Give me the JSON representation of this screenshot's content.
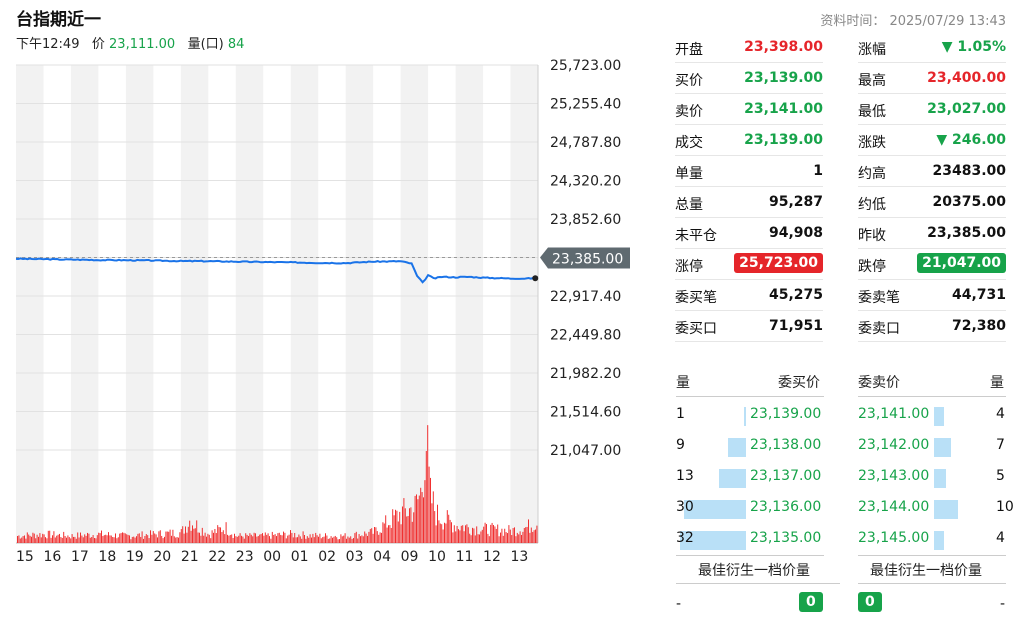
{
  "header": {
    "title": "台指期近一",
    "time_label": "下午12:49",
    "price_label": "价",
    "price": "23,111.00",
    "vol_label": "量(口)",
    "vol": "84",
    "data_time": "资料时间：  2025/07/29 13:43"
  },
  "colors": {
    "up": "#e5252a",
    "down": "#17a34a",
    "line": "#1a73e8",
    "volume": "#f03030",
    "bar": "#b9e0f7"
  },
  "quote_left": [
    {
      "label": "开盘",
      "value": "23,398.00",
      "color": "red"
    },
    {
      "label": "买价",
      "value": "23,139.00",
      "color": "grn"
    },
    {
      "label": "卖价",
      "value": "23,141.00",
      "color": "grn"
    },
    {
      "label": "成交",
      "value": "23,139.00",
      "color": "grn"
    },
    {
      "label": "单量",
      "value": "1",
      "color": "blk"
    },
    {
      "label": "总量",
      "value": "95,287",
      "color": "blk"
    },
    {
      "label": "未平仓",
      "value": "94,908",
      "color": "blk"
    },
    {
      "label": "涨停",
      "value": "25,723.00",
      "color": "badge-red"
    },
    {
      "label": "委买笔",
      "value": "45,275",
      "color": "blk"
    },
    {
      "label": "委买口",
      "value": "71,951",
      "color": "blk"
    }
  ],
  "quote_right": [
    {
      "label": "涨幅",
      "value": "▼ 1.05%",
      "color": "grn"
    },
    {
      "label": "最高",
      "value": "23,400.00",
      "color": "red"
    },
    {
      "label": "最低",
      "value": "23,027.00",
      "color": "grn"
    },
    {
      "label": "涨跌",
      "value": "▼ 246.00",
      "color": "grn"
    },
    {
      "label": "约高",
      "value": "23483.00",
      "color": "blk"
    },
    {
      "label": "约低",
      "value": "20375.00",
      "color": "blk"
    },
    {
      "label": "昨收",
      "value": "23,385.00",
      "color": "blk"
    },
    {
      "label": "跌停",
      "value": "21,047.00",
      "color": "badge-grn"
    },
    {
      "label": "委卖笔",
      "value": "44,731",
      "color": "blk"
    },
    {
      "label": "委卖口",
      "value": "72,380",
      "color": "blk"
    }
  ],
  "order_book": {
    "bid_headers": [
      "量",
      "委买价"
    ],
    "ask_headers": [
      "委卖价",
      "量"
    ],
    "bids": [
      {
        "qty": "1",
        "price": "23,139.00",
        "ratio": 0.03
      },
      {
        "qty": "9",
        "price": "23,138.00",
        "ratio": 0.28
      },
      {
        "qty": "13",
        "price": "23,137.00",
        "ratio": 0.41
      },
      {
        "qty": "30",
        "price": "23,136.00",
        "ratio": 0.94
      },
      {
        "qty": "32",
        "price": "23,135.00",
        "ratio": 1.0
      }
    ],
    "asks": [
      {
        "price": "23,141.00",
        "qty": "4",
        "ratio": 0.4
      },
      {
        "price": "23,142.00",
        "qty": "7",
        "ratio": 0.7
      },
      {
        "price": "23,143.00",
        "qty": "5",
        "ratio": 0.5
      },
      {
        "price": "23,144.00",
        "qty": "10",
        "ratio": 1.0
      },
      {
        "price": "23,145.00",
        "qty": "4",
        "ratio": 0.4
      }
    ],
    "best_label": "最佳衍生一档价量",
    "best_bid_price": "-",
    "best_bid_qty": "0",
    "best_ask_qty": "0",
    "best_ask_price": "-"
  },
  "chart_data": {
    "type": "line",
    "y_ticks": [
      "25,723.00",
      "25,255.40",
      "24,787.80",
      "24,320.20",
      "23,852.60",
      "23,385.00",
      "22,917.40",
      "22,449.80",
      "21,982.20",
      "21,514.60",
      "21,047.00"
    ],
    "ylim": [
      21047.0,
      25723.0
    ],
    "reference_price": 23385.0,
    "last_label": "23,385.00",
    "x_labels": [
      "15",
      "16",
      "17",
      "18",
      "19",
      "20",
      "21",
      "22",
      "23",
      "00",
      "01",
      "02",
      "03",
      "04",
      "09",
      "10",
      "11",
      "12",
      "13"
    ],
    "series": [
      {
        "values": [
          [
            0,
            23370
          ],
          [
            1,
            23365
          ],
          [
            2,
            23360
          ],
          [
            3,
            23355
          ],
          [
            4,
            23352
          ],
          [
            5,
            23348
          ],
          [
            6,
            23342
          ],
          [
            7,
            23340
          ],
          [
            8,
            23335
          ],
          [
            9,
            23330
          ],
          [
            10,
            23326
          ],
          [
            11,
            23320
          ],
          [
            12,
            23318
          ],
          [
            13,
            23335
          ],
          [
            14,
            23340
          ],
          [
            14.4,
            23310
          ],
          [
            14.6,
            23160
          ],
          [
            14.8,
            23080
          ],
          [
            15.0,
            23170
          ],
          [
            15.2,
            23130
          ],
          [
            15.5,
            23150
          ],
          [
            16,
            23145
          ],
          [
            16.5,
            23150
          ],
          [
            17,
            23140
          ],
          [
            17.5,
            23135
          ],
          [
            18,
            23130
          ],
          [
            18.5,
            23130
          ],
          [
            18.9,
            23133
          ]
        ]
      },
      {
        "name": "volume",
        "values": [
          [
            0,
            4
          ],
          [
            1,
            5
          ],
          [
            2,
            4
          ],
          [
            3,
            5
          ],
          [
            4,
            4
          ],
          [
            5,
            5
          ],
          [
            6,
            6
          ],
          [
            6.3,
            13
          ],
          [
            7,
            5
          ],
          [
            7.6,
            9
          ],
          [
            8,
            4
          ],
          [
            9,
            4
          ],
          [
            10,
            5
          ],
          [
            11,
            4
          ],
          [
            12,
            4
          ],
          [
            13,
            6
          ],
          [
            14,
            17
          ],
          [
            14.5,
            20
          ],
          [
            14.75,
            30
          ],
          [
            14.9,
            64
          ],
          [
            15.05,
            27
          ],
          [
            15.3,
            16
          ],
          [
            16,
            10
          ],
          [
            17,
            8
          ],
          [
            18,
            7
          ],
          [
            18.6,
            9
          ],
          [
            18.9,
            12
          ]
        ]
      }
    ],
    "vol_scale": 75
  }
}
